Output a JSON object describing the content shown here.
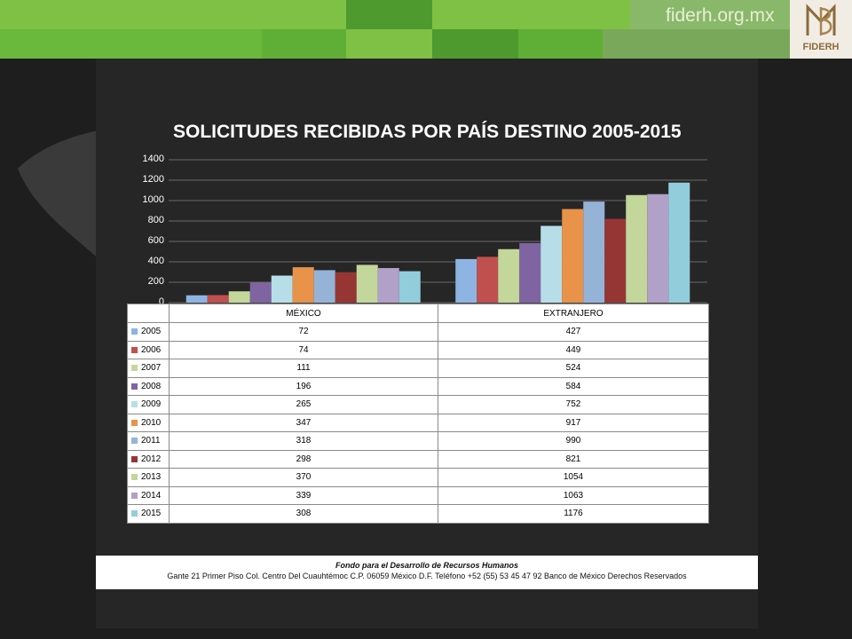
{
  "site": {
    "url": "fiderh.org.mx",
    "logo_text": "FIDERH",
    "logo_monogram": "MB"
  },
  "colors": {
    "band_light": "#7fc145",
    "band_dark": "#4e9a2e",
    "band_mid": "#5fae36",
    "panel": "#262626",
    "background": "#1e1e1e"
  },
  "chart_data": {
    "type": "bar",
    "title": "SOLICITUDES RECIBIDAS POR PAÍS DESTINO 2005-2015",
    "categories": [
      "MÉXICO",
      "EXTRANJERO"
    ],
    "ylim": [
      0,
      1400
    ],
    "yticks": [
      "0",
      "200",
      "400",
      "600",
      "800",
      "1000",
      "1200",
      "1400"
    ],
    "grid": true,
    "legend": "data-table",
    "series": [
      {
        "name": "2005",
        "values": [
          72,
          427
        ],
        "color": "#8db4e2"
      },
      {
        "name": "2006",
        "values": [
          74,
          449
        ],
        "color": "#c0504d"
      },
      {
        "name": "2007",
        "values": [
          111,
          524
        ],
        "color": "#c4d79b"
      },
      {
        "name": "2008",
        "values": [
          196,
          584
        ],
        "color": "#8064a2"
      },
      {
        "name": "2009",
        "values": [
          265,
          752
        ],
        "color": "#b7dee8"
      },
      {
        "name": "2010",
        "values": [
          347,
          917
        ],
        "color": "#e8924a"
      },
      {
        "name": "2011",
        "values": [
          318,
          990
        ],
        "color": "#95b3d7"
      },
      {
        "name": "2012",
        "values": [
          298,
          821
        ],
        "color": "#963634"
      },
      {
        "name": "2013",
        "values": [
          370,
          1054
        ],
        "color": "#c3d69b"
      },
      {
        "name": "2014",
        "values": [
          339,
          1063
        ],
        "color": "#b1a0c7"
      },
      {
        "name": "2015",
        "values": [
          308,
          1176
        ],
        "color": "#92cddc"
      }
    ]
  },
  "footer": {
    "title": "Fondo para el Desarrollo de Recursos Humanos",
    "address": "Gante 21 Primer Piso Col. Centro Del Cuauhtémoc C.P. 06059 México D.F. Teléfono +52 (55) 53 45 47 92 Banco de México Derechos Reservados"
  }
}
